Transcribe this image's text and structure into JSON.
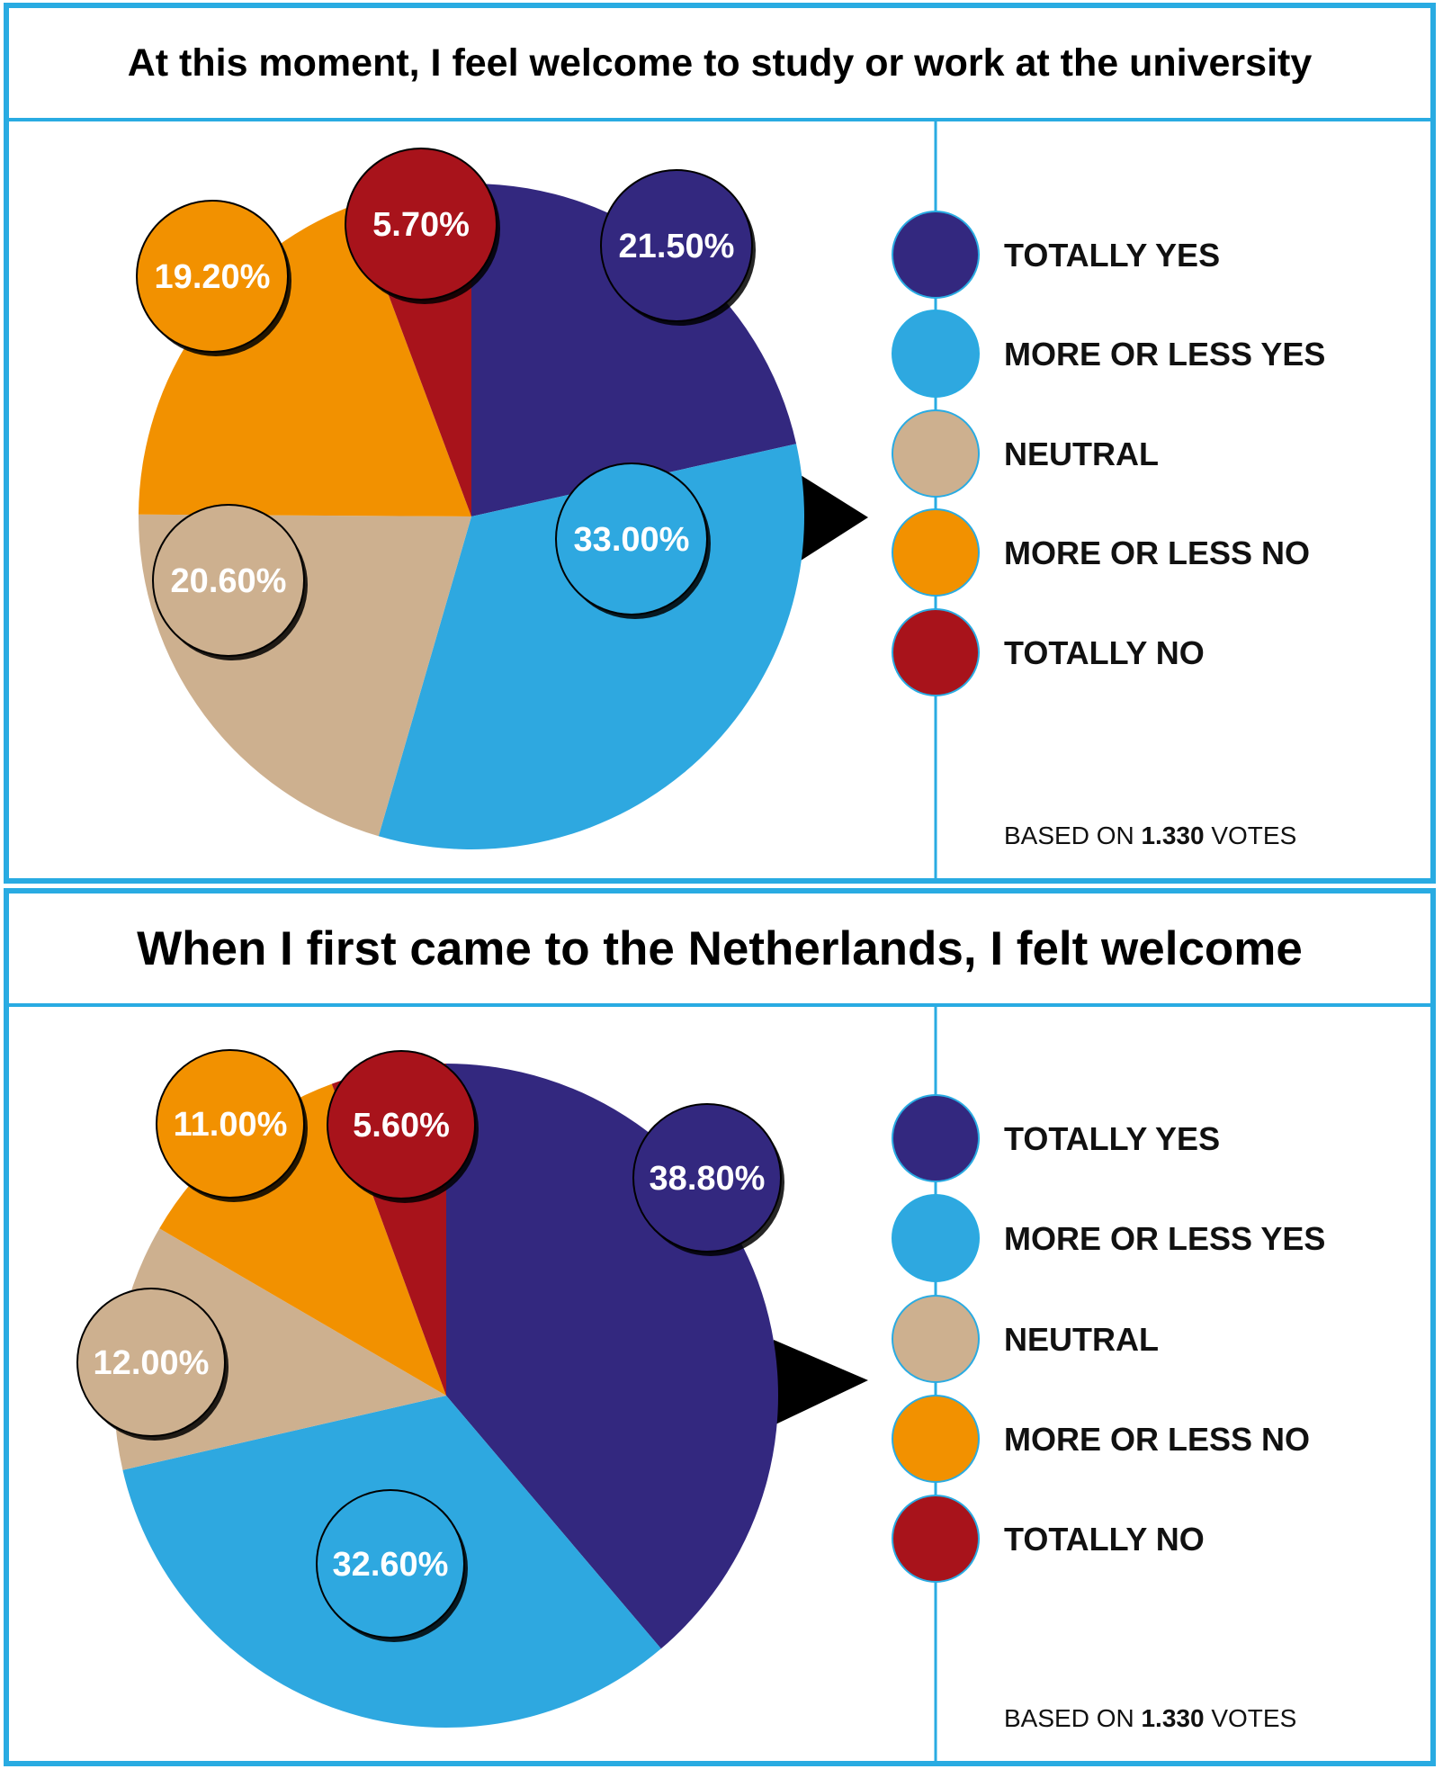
{
  "colors": {
    "border": "#29abe2",
    "totally_yes": "#33287f",
    "more_or_less_yes": "#2ea8e0",
    "neutral": "#cdb08f",
    "more_or_less_no": "#f29100",
    "totally_no": "#a8131b"
  },
  "chart_data": [
    {
      "type": "pie",
      "title": "At this moment, I feel welcome to study or work at the university",
      "legend_placement": "right",
      "series": [
        {
          "name": "TOTALLY YES",
          "value": 21.5,
          "label": "21.50%",
          "color_key": "totally_yes"
        },
        {
          "name": "MORE OR LESS YES",
          "value": 33.0,
          "label": "33.00%",
          "color_key": "more_or_less_yes"
        },
        {
          "name": "NEUTRAL",
          "value": 20.6,
          "label": "20.60%",
          "color_key": "neutral"
        },
        {
          "name": "MORE OR LESS NO",
          "value": 19.2,
          "label": "19.20%",
          "color_key": "more_or_less_no"
        },
        {
          "name": "TOTALLY NO",
          "value": 5.7,
          "label": "5.70%",
          "color_key": "totally_no"
        }
      ],
      "note": {
        "prefix": "BASED ON ",
        "count": "1.330",
        "suffix": " VOTES"
      }
    },
    {
      "type": "pie",
      "title": "When I first came to the Netherlands, I felt welcome",
      "legend_placement": "right",
      "series": [
        {
          "name": "TOTALLY YES",
          "value": 38.8,
          "label": "38.80%",
          "color_key": "totally_yes"
        },
        {
          "name": "MORE OR LESS YES",
          "value": 32.6,
          "label": "32.60%",
          "color_key": "more_or_less_yes"
        },
        {
          "name": "NEUTRAL",
          "value": 12.0,
          "label": "12.00%",
          "color_key": "neutral"
        },
        {
          "name": "MORE OR LESS NO",
          "value": 11.0,
          "label": "11.00%",
          "color_key": "more_or_less_no"
        },
        {
          "name": "TOTALLY NO",
          "value": 5.6,
          "label": "5.60%",
          "color_key": "totally_no"
        }
      ],
      "note": {
        "prefix": "BASED ON ",
        "count": "1.330",
        "suffix": " VOTES"
      }
    }
  ]
}
